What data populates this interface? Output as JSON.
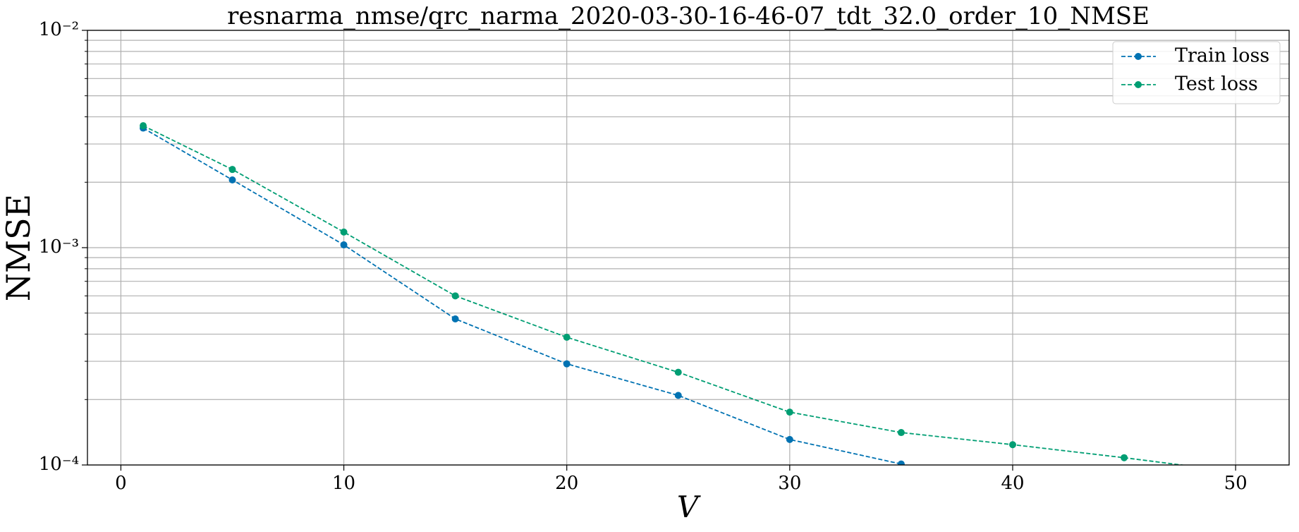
{
  "chart_data": {
    "type": "line",
    "title": "resnarma_nmse/qrc_narma_2020-03-30-16-46-07_tdt_32.0_order_10_NMSE",
    "x_label": "V",
    "y_label": "NMSE",
    "series": [
      {
        "name": "Train loss",
        "color": "#0072b2",
        "x": [
          1,
          5,
          10,
          15,
          20,
          25,
          30,
          35
        ],
        "values": [
          0.00355,
          0.00205,
          0.00103,
          0.00047,
          0.000292,
          0.000209,
          0.000131,
          0.000101
        ]
      },
      {
        "name": "Test loss",
        "color": "#009e73",
        "x": [
          1,
          5,
          10,
          15,
          20,
          25,
          30,
          35,
          40,
          45,
          50
        ],
        "values": [
          0.00364,
          0.00229,
          0.00118,
          0.0006,
          0.000387,
          0.000267,
          0.000175,
          0.000141,
          0.000124,
          0.000108,
          9.3e-05
        ]
      }
    ],
    "xlim": [
      -1.5,
      52.4
    ],
    "xticks": [
      0,
      10,
      20,
      30,
      40,
      50
    ],
    "ylim": [
      0.0001,
      0.01
    ],
    "y_scale": "log",
    "yticks": [
      {
        "value": 0.0001,
        "label": "10⁻⁴"
      },
      {
        "value": 0.001,
        "label": "10⁻³"
      },
      {
        "value": 0.01,
        "label": "10⁻²"
      }
    ],
    "yminorticks": [
      0.0002,
      0.0003,
      0.0004,
      0.0005,
      0.0006,
      0.0007,
      0.0008,
      0.0009,
      0.002,
      0.003,
      0.004,
      0.005,
      0.006,
      0.007,
      0.008,
      0.009
    ],
    "grid": true,
    "legend_loc": "upper right"
  }
}
